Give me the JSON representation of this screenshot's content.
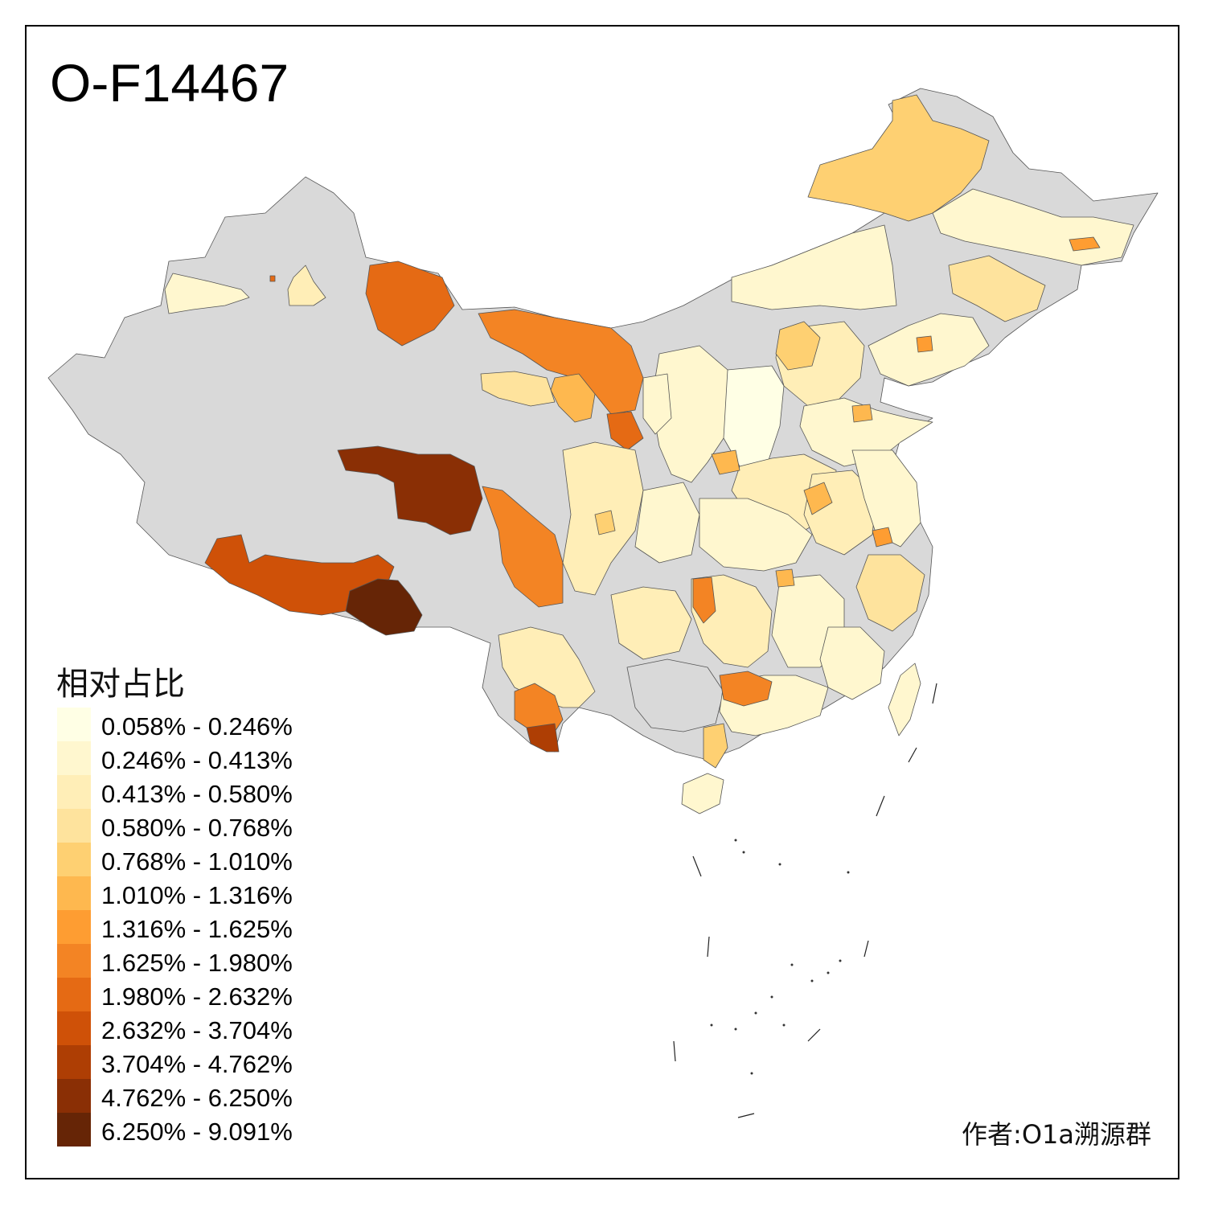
{
  "title": "O-F14467",
  "legend": {
    "title": "相对占比",
    "items": [
      {
        "label": "0.058% - 0.246%",
        "color": "#FFFFE5"
      },
      {
        "label": "0.246% - 0.413%",
        "color": "#FFF7CF"
      },
      {
        "label": "0.413% - 0.580%",
        "color": "#FFEEB7"
      },
      {
        "label": "0.580% - 0.768%",
        "color": "#FEE39D"
      },
      {
        "label": "0.768% - 1.010%",
        "color": "#FED072"
      },
      {
        "label": "1.010% - 1.316%",
        "color": "#FEB84F"
      },
      {
        "label": "1.316% - 1.625%",
        "color": "#FE9D32"
      },
      {
        "label": "1.625% - 1.980%",
        "color": "#F38424"
      },
      {
        "label": "1.980% - 2.632%",
        "color": "#E56A14"
      },
      {
        "label": "2.632% - 3.704%",
        "color": "#CF5108"
      },
      {
        "label": "3.704% - 4.762%",
        "color": "#AE3E04"
      },
      {
        "label": "4.762% - 6.250%",
        "color": "#8A2F05"
      },
      {
        "label": "6.250% - 9.091%",
        "color": "#662506"
      }
    ]
  },
  "no_data_color": "#D9D9D9",
  "author": "作者:O1a溯源群"
}
